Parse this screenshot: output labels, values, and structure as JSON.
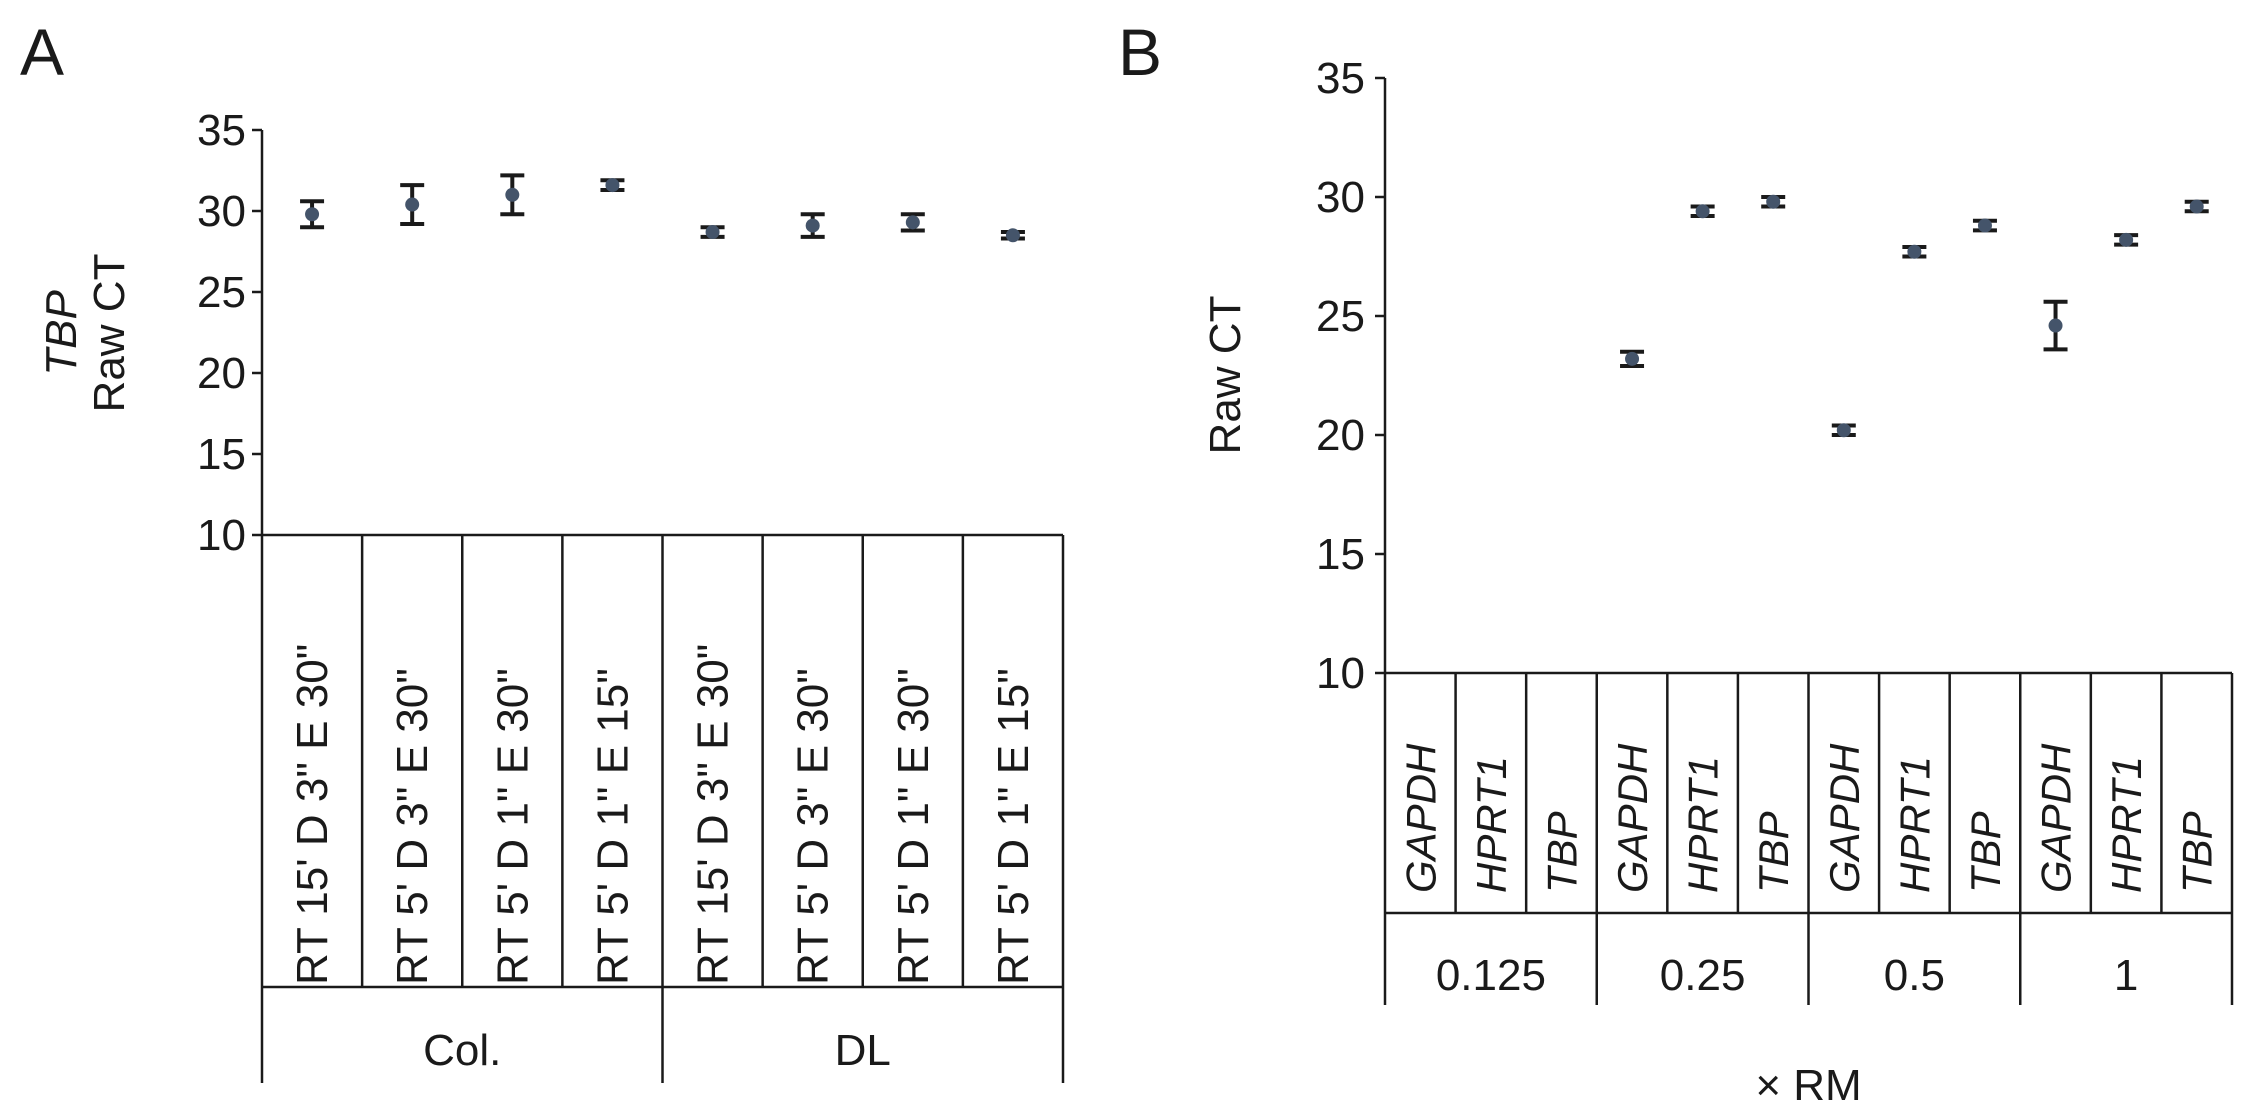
{
  "chart_data": [
    {
      "panel_label": "A",
      "type": "scatter",
      "ylabel_italic": "TBP",
      "ylabel": "Raw CT",
      "ylim": [
        10,
        35
      ],
      "yticks": [
        10,
        15,
        20,
        25,
        30,
        35
      ],
      "grid": false,
      "categories": [
        "RT 15' D 3\" E 30\"",
        "RT 5' D 3\" E 30\"",
        "RT 5' D 1\" E 30\"",
        "RT 5' D 1\" E 15\"",
        "RT 15' D 3\" E 30\"",
        "RT 5' D 3\" E 30\"",
        "RT 5' D 1\" E 30\"",
        "RT 5' D 1\" E 15\""
      ],
      "groups": [
        {
          "label": "Col.",
          "span": 4
        },
        {
          "label": "DL",
          "span": 4
        }
      ],
      "values": [
        29.8,
        30.4,
        31.0,
        31.6,
        28.7,
        29.1,
        29.3,
        28.5
      ],
      "errors": [
        0.8,
        1.2,
        1.2,
        0.3,
        0.3,
        0.7,
        0.5,
        0.2
      ]
    },
    {
      "panel_label": "B",
      "type": "scatter",
      "ylabel": "Raw CT",
      "xlabel": "× RM",
      "ylim": [
        10,
        35
      ],
      "yticks": [
        10,
        15,
        20,
        25,
        30,
        35
      ],
      "grid": false,
      "categories": [
        "GAPDH",
        "HPRT1",
        "TBP",
        "GAPDH",
        "HPRT1",
        "TBP",
        "GAPDH",
        "HPRT1",
        "TBP",
        "GAPDH",
        "HPRT1",
        "TBP"
      ],
      "groups": [
        {
          "label": "0.125",
          "span": 3
        },
        {
          "label": "0.25",
          "span": 3
        },
        {
          "label": "0.5",
          "span": 3
        },
        {
          "label": "1",
          "span": 3
        }
      ],
      "values": [
        null,
        null,
        null,
        23.2,
        29.4,
        29.8,
        20.2,
        27.7,
        28.8,
        24.6,
        28.2,
        29.6
      ],
      "errors": [
        null,
        null,
        null,
        0.3,
        0.2,
        0.2,
        0.2,
        0.2,
        0.2,
        1.0,
        0.2,
        0.2
      ]
    }
  ]
}
